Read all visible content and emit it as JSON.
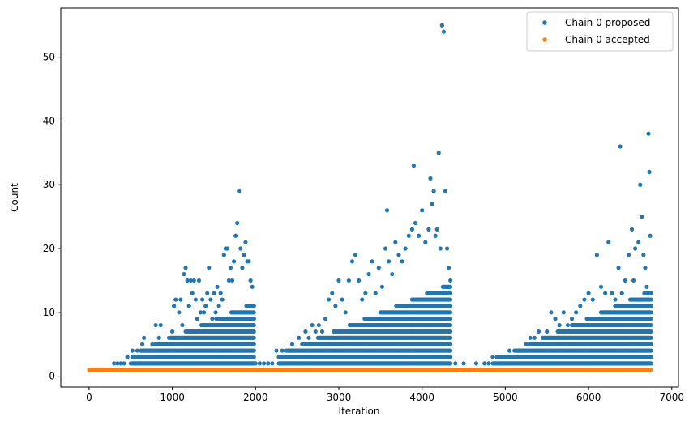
{
  "chart_data": {
    "type": "scatter",
    "title": "",
    "xlabel": "Iteration",
    "ylabel": "Count",
    "xlim": [
      -340,
      7080
    ],
    "ylim": [
      -1.7,
      57.7
    ],
    "x_ticks": [
      0,
      1000,
      2000,
      3000,
      4000,
      5000,
      6000,
      7000
    ],
    "y_ticks": [
      0,
      10,
      20,
      30,
      40,
      50
    ],
    "grid": false,
    "legend_position": "top-right",
    "colors": {
      "proposed": "#1f77b4",
      "accepted": "#ff7f0e"
    },
    "series": [
      {
        "name": "Chain 0 proposed",
        "color": "#1f77b4",
        "points": [
          [
            300,
            2
          ],
          [
            340,
            2
          ],
          [
            380,
            2
          ],
          [
            420,
            2
          ],
          [
            460,
            3
          ],
          [
            500,
            2
          ],
          [
            520,
            4
          ],
          [
            560,
            3
          ],
          [
            580,
            4
          ],
          [
            600,
            2
          ],
          [
            640,
            5
          ],
          [
            660,
            6
          ],
          [
            700,
            3
          ],
          [
            720,
            4
          ],
          [
            760,
            5
          ],
          [
            780,
            3
          ],
          [
            800,
            8
          ],
          [
            840,
            6
          ],
          [
            860,
            8
          ],
          [
            900,
            4
          ],
          [
            920,
            5
          ],
          [
            960,
            6
          ],
          [
            1000,
            7
          ],
          [
            1020,
            11
          ],
          [
            1040,
            12
          ],
          [
            1060,
            5
          ],
          [
            1080,
            10
          ],
          [
            1100,
            12
          ],
          [
            1120,
            8
          ],
          [
            1140,
            16
          ],
          [
            1160,
            17
          ],
          [
            1180,
            15
          ],
          [
            1200,
            11
          ],
          [
            1220,
            15
          ],
          [
            1240,
            13
          ],
          [
            1260,
            15
          ],
          [
            1280,
            12
          ],
          [
            1300,
            9
          ],
          [
            1320,
            15
          ],
          [
            1340,
            10
          ],
          [
            1360,
            12
          ],
          [
            1380,
            10
          ],
          [
            1400,
            11
          ],
          [
            1420,
            13
          ],
          [
            1440,
            17
          ],
          [
            1460,
            12
          ],
          [
            1480,
            9
          ],
          [
            1500,
            13
          ],
          [
            1520,
            10
          ],
          [
            1540,
            14
          ],
          [
            1560,
            11
          ],
          [
            1580,
            13
          ],
          [
            1600,
            12
          ],
          [
            1620,
            19
          ],
          [
            1640,
            20
          ],
          [
            1660,
            20
          ],
          [
            1680,
            15
          ],
          [
            1700,
            17
          ],
          [
            1720,
            15
          ],
          [
            1740,
            18
          ],
          [
            1760,
            22
          ],
          [
            1780,
            24
          ],
          [
            1800,
            29
          ],
          [
            1820,
            20
          ],
          [
            1840,
            17
          ],
          [
            1860,
            19
          ],
          [
            1880,
            21
          ],
          [
            1900,
            18
          ],
          [
            1920,
            18
          ],
          [
            1940,
            15
          ],
          [
            1960,
            14
          ],
          [
            1980,
            9
          ],
          [
            2000,
            2
          ],
          [
            2050,
            2
          ],
          [
            2100,
            2
          ],
          [
            2150,
            2
          ],
          [
            2200,
            2
          ],
          [
            2250,
            4
          ],
          [
            2280,
            3
          ],
          [
            2320,
            4
          ],
          [
            2360,
            4
          ],
          [
            2400,
            3
          ],
          [
            2440,
            5
          ],
          [
            2480,
            4
          ],
          [
            2520,
            6
          ],
          [
            2560,
            5
          ],
          [
            2600,
            7
          ],
          [
            2640,
            6
          ],
          [
            2680,
            8
          ],
          [
            2720,
            7
          ],
          [
            2760,
            8
          ],
          [
            2800,
            7
          ],
          [
            2840,
            9
          ],
          [
            2880,
            12
          ],
          [
            2920,
            13
          ],
          [
            2960,
            11
          ],
          [
            3000,
            15
          ],
          [
            3040,
            12
          ],
          [
            3080,
            10
          ],
          [
            3120,
            15
          ],
          [
            3160,
            18
          ],
          [
            3200,
            19
          ],
          [
            3240,
            15
          ],
          [
            3280,
            12
          ],
          [
            3320,
            13
          ],
          [
            3360,
            16
          ],
          [
            3400,
            18
          ],
          [
            3440,
            13
          ],
          [
            3480,
            17
          ],
          [
            3520,
            14
          ],
          [
            3560,
            20
          ],
          [
            3580,
            26
          ],
          [
            3600,
            18
          ],
          [
            3640,
            16
          ],
          [
            3680,
            21
          ],
          [
            3720,
            19
          ],
          [
            3760,
            18
          ],
          [
            3800,
            20
          ],
          [
            3840,
            22
          ],
          [
            3880,
            23
          ],
          [
            3900,
            33
          ],
          [
            3920,
            24
          ],
          [
            3960,
            22
          ],
          [
            4000,
            26
          ],
          [
            4040,
            21
          ],
          [
            4080,
            23
          ],
          [
            4100,
            31
          ],
          [
            4120,
            27
          ],
          [
            4140,
            29
          ],
          [
            4160,
            22
          ],
          [
            4180,
            23
          ],
          [
            4200,
            35
          ],
          [
            4220,
            20
          ],
          [
            4240,
            55
          ],
          [
            4260,
            54
          ],
          [
            4280,
            29
          ],
          [
            4300,
            20
          ],
          [
            4320,
            17
          ],
          [
            4340,
            15
          ],
          [
            4400,
            2
          ],
          [
            4500,
            2
          ],
          [
            4650,
            2
          ],
          [
            4750,
            2
          ],
          [
            4800,
            2
          ],
          [
            4850,
            3
          ],
          [
            4900,
            3
          ],
          [
            4950,
            2
          ],
          [
            5000,
            3
          ],
          [
            5050,
            4
          ],
          [
            5100,
            3
          ],
          [
            5150,
            4
          ],
          [
            5200,
            4
          ],
          [
            5250,
            5
          ],
          [
            5300,
            6
          ],
          [
            5350,
            6
          ],
          [
            5400,
            7
          ],
          [
            5450,
            6
          ],
          [
            5500,
            7
          ],
          [
            5550,
            10
          ],
          [
            5600,
            9
          ],
          [
            5650,
            8
          ],
          [
            5700,
            10
          ],
          [
            5750,
            8
          ],
          [
            5800,
            9
          ],
          [
            5850,
            10
          ],
          [
            5900,
            11
          ],
          [
            5950,
            12
          ],
          [
            6000,
            13
          ],
          [
            6050,
            12
          ],
          [
            6100,
            19
          ],
          [
            6150,
            14
          ],
          [
            6200,
            13
          ],
          [
            6240,
            21
          ],
          [
            6280,
            13
          ],
          [
            6320,
            12
          ],
          [
            6360,
            17
          ],
          [
            6380,
            36
          ],
          [
            6400,
            13
          ],
          [
            6440,
            15
          ],
          [
            6480,
            19
          ],
          [
            6520,
            23
          ],
          [
            6540,
            15
          ],
          [
            6560,
            20
          ],
          [
            6600,
            21
          ],
          [
            6620,
            30
          ],
          [
            6640,
            25
          ],
          [
            6660,
            19
          ],
          [
            6680,
            17
          ],
          [
            6700,
            14
          ],
          [
            6720,
            38
          ],
          [
            6730,
            32
          ],
          [
            6740,
            22
          ],
          [
            6750,
            13
          ]
        ],
        "filled_bands": [
          {
            "x_range": [
              520,
              1980
            ],
            "y_from": 2,
            "y_to_at_start": 3,
            "y_to_at_end": 11
          },
          {
            "x_range": [
              2280,
              4340
            ],
            "y_from": 2,
            "y_to_at_start": 3,
            "y_to_at_end": 14
          },
          {
            "x_range": [
              4850,
              6750
            ],
            "y_from": 2,
            "y_to_at_start": 2,
            "y_to_at_end": 13
          }
        ]
      },
      {
        "name": "Chain 0 accepted",
        "color": "#ff7f0e",
        "x_range": [
          0,
          6750
        ],
        "y": 1
      }
    ]
  }
}
